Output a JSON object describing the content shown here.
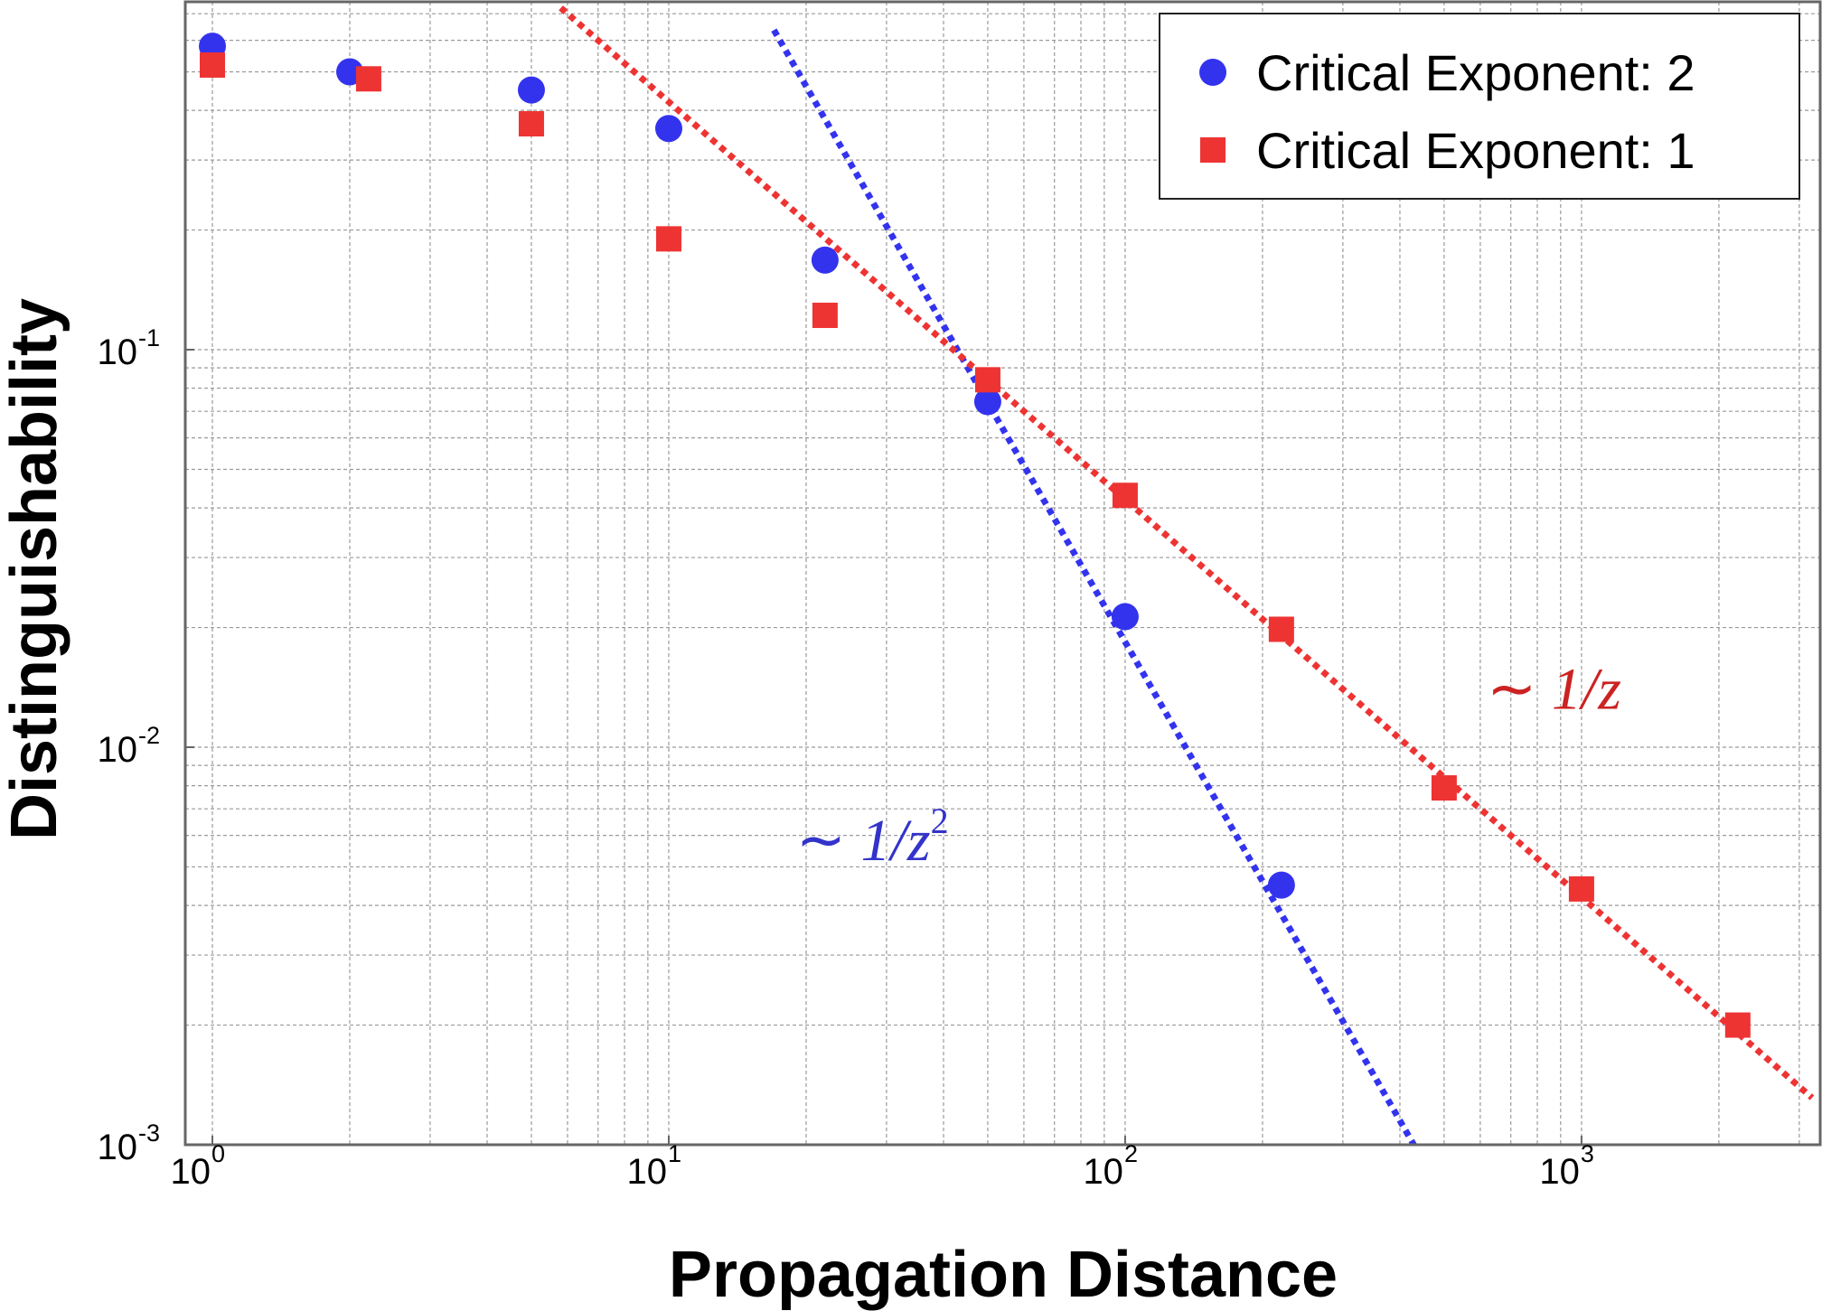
{
  "chart_data": {
    "type": "scatter",
    "xlabel": "Propagation Distance",
    "ylabel": "Distinguishability",
    "x_scale": "log",
    "y_scale": "log",
    "xlim": [
      1,
      3200
    ],
    "ylim": [
      0.001,
      0.75
    ],
    "x_ticks": [
      {
        "base": "10",
        "exp": "0",
        "value": 1
      },
      {
        "base": "10",
        "exp": "1",
        "value": 10
      },
      {
        "base": "10",
        "exp": "2",
        "value": 100
      },
      {
        "base": "10",
        "exp": "3",
        "value": 1000
      }
    ],
    "y_ticks": [
      {
        "base": "10",
        "exp": "-3",
        "value": 0.001
      },
      {
        "base": "10",
        "exp": "-2",
        "value": 0.01
      },
      {
        "base": "10",
        "exp": "-1",
        "value": 0.1
      }
    ],
    "grid": true,
    "legend_position": "top-right",
    "series": [
      {
        "name": "Critical Exponent: 2",
        "marker": "circle",
        "color": "#3333ee",
        "points": [
          {
            "x": 1,
            "y": 0.58
          },
          {
            "x": 2,
            "y": 0.5
          },
          {
            "x": 5,
            "y": 0.45
          },
          {
            "x": 10,
            "y": 0.36
          },
          {
            "x": 22,
            "y": 0.168
          },
          {
            "x": 50,
            "y": 0.074
          },
          {
            "x": 100,
            "y": 0.0213
          },
          {
            "x": 220,
            "y": 0.0045
          }
        ]
      },
      {
        "name": "Critical Exponent: 1",
        "marker": "square",
        "color": "#ee3333",
        "points": [
          {
            "x": 1,
            "y": 0.52
          },
          {
            "x": 2.2,
            "y": 0.48
          },
          {
            "x": 5,
            "y": 0.37
          },
          {
            "x": 10,
            "y": 0.19
          },
          {
            "x": 22,
            "y": 0.122
          },
          {
            "x": 50,
            "y": 0.084
          },
          {
            "x": 100,
            "y": 0.043
          },
          {
            "x": 220,
            "y": 0.0198
          },
          {
            "x": 500,
            "y": 0.0079
          },
          {
            "x": 1000,
            "y": 0.0044
          },
          {
            "x": 2200,
            "y": 0.002
          }
        ]
      }
    ],
    "fit_lines": [
      {
        "name": "~1/z^2",
        "color": "#3333ee",
        "coefficient": 184,
        "exponent": -2,
        "x_range": [
          17,
          450
        ]
      },
      {
        "name": "~1/z",
        "color": "#ee3333",
        "coefficient": 4.2,
        "exponent": -1,
        "x_range": [
          5.8,
          3200
        ]
      }
    ],
    "annotations": [
      {
        "symbol": "∼",
        "text": "1/z",
        "superscript": "",
        "color": "#cc2222",
        "x": 620,
        "y": 0.0125
      },
      {
        "symbol": "∼",
        "text": "1/z",
        "superscript": "2",
        "color": "#3333cc",
        "x": 19,
        "y": 0.0052
      }
    ]
  }
}
